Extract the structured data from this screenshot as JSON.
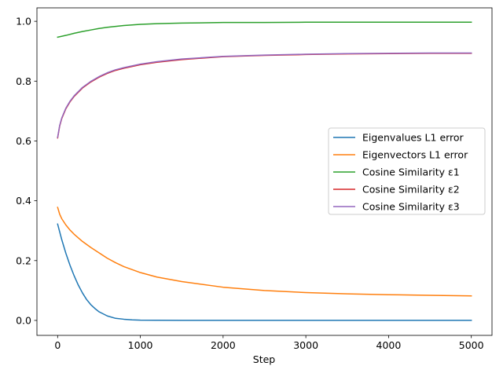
{
  "chart_data": {
    "type": "line",
    "title": "",
    "xlabel": "Step",
    "ylabel": "",
    "xlim": [
      -250,
      5250
    ],
    "ylim": [
      -0.05,
      1.045
    ],
    "xticks": [
      0,
      1000,
      2000,
      3000,
      4000,
      5000
    ],
    "yticks": [
      0.0,
      0.2,
      0.4,
      0.6,
      0.8,
      1.0
    ],
    "xtick_labels": [
      "0",
      "1000",
      "2000",
      "3000",
      "4000",
      "5000"
    ],
    "ytick_labels": [
      "0.0",
      "0.2",
      "0.4",
      "0.6",
      "0.8",
      "1.0"
    ],
    "grid": false,
    "legend_position": "center-right",
    "series": [
      {
        "name": "Eigenvalues L1 error",
        "color": "#1f77b4",
        "x": [
          0,
          50,
          100,
          150,
          200,
          250,
          300,
          350,
          400,
          450,
          500,
          600,
          700,
          800,
          900,
          1000,
          1200,
          1500,
          2000,
          2500,
          3000,
          3500,
          4000,
          4500,
          5000
        ],
        "y": [
          0.322,
          0.27,
          0.224,
          0.184,
          0.149,
          0.118,
          0.092,
          0.07,
          0.053,
          0.04,
          0.029,
          0.015,
          0.007,
          0.004,
          0.002,
          0.001,
          0.0005,
          0.0003,
          0.0002,
          0.0001,
          0.0001,
          0.0001,
          0.0001,
          0.0001,
          0.0001
        ]
      },
      {
        "name": "Eigenvectors L1 error",
        "color": "#ff7f0e",
        "x": [
          0,
          25,
          50,
          100,
          150,
          200,
          300,
          400,
          500,
          600,
          700,
          800,
          1000,
          1200,
          1500,
          2000,
          2500,
          3000,
          3500,
          4000,
          4500,
          5000
        ],
        "y": [
          0.378,
          0.355,
          0.34,
          0.319,
          0.302,
          0.288,
          0.264,
          0.244,
          0.226,
          0.208,
          0.193,
          0.18,
          0.16,
          0.145,
          0.13,
          0.111,
          0.1,
          0.093,
          0.089,
          0.086,
          0.084,
          0.082
        ]
      },
      {
        "name": "Cosine Similarity ε1",
        "color": "#2ca02c",
        "x": [
          0,
          100,
          200,
          300,
          400,
          500,
          600,
          700,
          800,
          1000,
          1200,
          1500,
          2000,
          2500,
          3000,
          4000,
          5000
        ],
        "y": [
          0.947,
          0.953,
          0.96,
          0.966,
          0.971,
          0.976,
          0.98,
          0.983,
          0.986,
          0.99,
          0.992,
          0.994,
          0.996,
          0.996,
          0.997,
          0.997,
          0.997
        ]
      },
      {
        "name": "Cosine Similarity ε2",
        "color": "#d62728",
        "x": [
          0,
          25,
          50,
          100,
          150,
          200,
          300,
          400,
          500,
          600,
          700,
          800,
          1000,
          1200,
          1500,
          2000,
          2500,
          3000,
          3500,
          4000,
          4500,
          5000
        ],
        "y": [
          0.61,
          0.65,
          0.675,
          0.708,
          0.731,
          0.749,
          0.777,
          0.797,
          0.813,
          0.826,
          0.836,
          0.843,
          0.855,
          0.863,
          0.872,
          0.882,
          0.886,
          0.889,
          0.891,
          0.892,
          0.893,
          0.893
        ]
      },
      {
        "name": "Cosine Similarity ε3",
        "color": "#9467bd",
        "x": [
          0,
          25,
          50,
          100,
          150,
          200,
          300,
          400,
          500,
          600,
          700,
          800,
          1000,
          1200,
          1500,
          2000,
          2500,
          3000,
          3500,
          4000,
          4500,
          5000
        ],
        "y": [
          0.612,
          0.652,
          0.677,
          0.71,
          0.733,
          0.751,
          0.779,
          0.799,
          0.815,
          0.828,
          0.838,
          0.845,
          0.857,
          0.865,
          0.874,
          0.883,
          0.887,
          0.89,
          0.892,
          0.893,
          0.894,
          0.894
        ]
      }
    ]
  }
}
